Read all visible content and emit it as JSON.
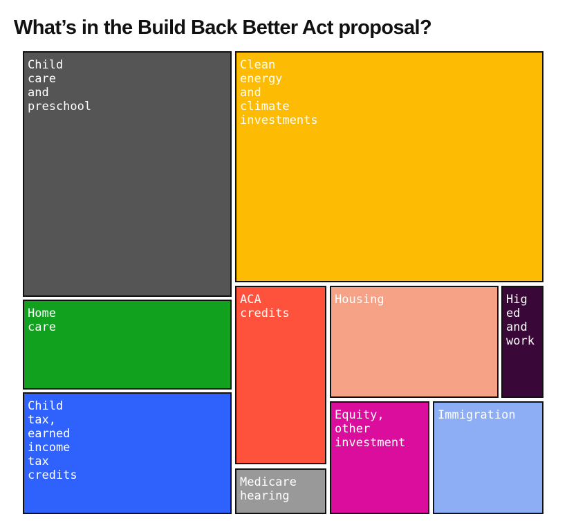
{
  "chart_data": {
    "type": "treemap",
    "title": "What’s in the Build Back Better Act proposal?",
    "units": "",
    "categories": [
      {
        "label": "Child\ncare\nand\npreschool",
        "color": "#555555"
      },
      {
        "label": "Clean\nenergy\nand\nclimate\ninvestments",
        "color": "#FDBB03"
      },
      {
        "label": "Home\ncare",
        "color": "#12A01F"
      },
      {
        "label": "Child\ntax,\nearned\nincome\ntax\ncredits",
        "color": "#2F62FC"
      },
      {
        "label": "ACA\ncredits",
        "color": "#FE523C"
      },
      {
        "label": "Medicare\nhearing",
        "color": "#999999"
      },
      {
        "label": "Housing",
        "color": "#F5A286"
      },
      {
        "label": "Hig\ned\nand\nwork",
        "color": "#3A0838"
      },
      {
        "label": "Equity,\nother\ninvestment",
        "color": "#DB0D9C"
      },
      {
        "label": "Immigration",
        "color": "#8DADF5"
      }
    ],
    "values": [
      105,
      147,
      44,
      46,
      42,
      6,
      36,
      12,
      16,
      26
    ]
  }
}
